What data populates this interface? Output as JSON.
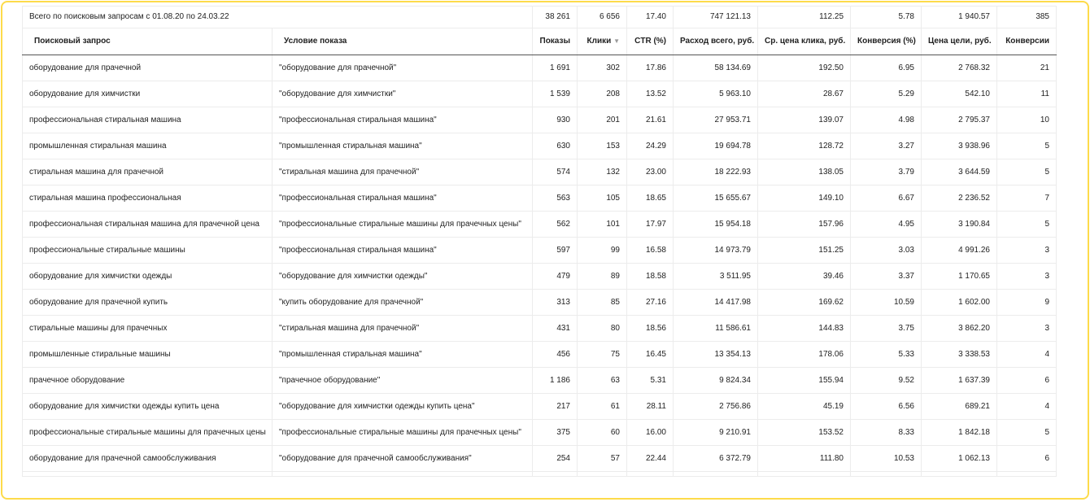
{
  "summary": {
    "label": "Всего по поисковым запросам с 01.08.20 по 24.03.22",
    "values": [
      "38 261",
      "6 656",
      "17.40",
      "747 121.13",
      "112.25",
      "5.78",
      "1 940.57",
      "385"
    ]
  },
  "columns": [
    "Поисковый запрос",
    "Условие показа",
    "Показы",
    "Клики",
    "CTR (%)",
    "Расход всего, руб.",
    "Ср. цена клика, руб.",
    "Конверсия (%)",
    "Цена цели, руб.",
    "Конверсии"
  ],
  "sort_indicator": "▼",
  "rows": [
    [
      "оборудование для прачечной",
      "\"оборудование для прачечной\"",
      "1 691",
      "302",
      "17.86",
      "58 134.69",
      "192.50",
      "6.95",
      "2 768.32",
      "21"
    ],
    [
      "оборудование для химчистки",
      "\"оборудование для химчистки\"",
      "1 539",
      "208",
      "13.52",
      "5 963.10",
      "28.67",
      "5.29",
      "542.10",
      "11"
    ],
    [
      "профессиональная стиральная машина",
      "\"профессиональная стиральная машина\"",
      "930",
      "201",
      "21.61",
      "27 953.71",
      "139.07",
      "4.98",
      "2 795.37",
      "10"
    ],
    [
      "промышленная стиральная машина",
      "\"промышленная стиральная машина\"",
      "630",
      "153",
      "24.29",
      "19 694.78",
      "128.72",
      "3.27",
      "3 938.96",
      "5"
    ],
    [
      "стиральная машина для прачечной",
      "\"стиральная машина для прачечной\"",
      "574",
      "132",
      "23.00",
      "18 222.93",
      "138.05",
      "3.79",
      "3 644.59",
      "5"
    ],
    [
      "стиральная машина профессиональная",
      "\"профессиональная стиральная машина\"",
      "563",
      "105",
      "18.65",
      "15 655.67",
      "149.10",
      "6.67",
      "2 236.52",
      "7"
    ],
    [
      "профессиональная стиральная машина для прачечной цена",
      "\"профессиональные стиральные машины для прачечных цены\"",
      "562",
      "101",
      "17.97",
      "15 954.18",
      "157.96",
      "4.95",
      "3 190.84",
      "5"
    ],
    [
      "профессиональные стиральные машины",
      "\"профессиональная стиральная машина\"",
      "597",
      "99",
      "16.58",
      "14 973.79",
      "151.25",
      "3.03",
      "4 991.26",
      "3"
    ],
    [
      "оборудование для химчистки одежды",
      "\"оборудование для химчистки одежды\"",
      "479",
      "89",
      "18.58",
      "3 511.95",
      "39.46",
      "3.37",
      "1 170.65",
      "3"
    ],
    [
      "оборудование для прачечной купить",
      "\"купить оборудование для прачечной\"",
      "313",
      "85",
      "27.16",
      "14 417.98",
      "169.62",
      "10.59",
      "1 602.00",
      "9"
    ],
    [
      "стиральные машины для прачечных",
      "\"стиральная машина для прачечной\"",
      "431",
      "80",
      "18.56",
      "11 586.61",
      "144.83",
      "3.75",
      "3 862.20",
      "3"
    ],
    [
      "промышленные стиральные машины",
      "\"промышленная стиральная машина\"",
      "456",
      "75",
      "16.45",
      "13 354.13",
      "178.06",
      "5.33",
      "3 338.53",
      "4"
    ],
    [
      "прачечное оборудование",
      "\"прачечное оборудование\"",
      "1 186",
      "63",
      "5.31",
      "9 824.34",
      "155.94",
      "9.52",
      "1 637.39",
      "6"
    ],
    [
      "оборудование для химчистки одежды купить цена",
      "\"оборудование для химчистки одежды купить цена\"",
      "217",
      "61",
      "28.11",
      "2 756.86",
      "45.19",
      "6.56",
      "689.21",
      "4"
    ],
    [
      "профессиональные стиральные машины для прачечных цены",
      "\"профессиональные стиральные машины для прачечных цены\"",
      "375",
      "60",
      "16.00",
      "9 210.91",
      "153.52",
      "8.33",
      "1 842.18",
      "5"
    ],
    [
      "оборудование для прачечной самообслуживания",
      "\"оборудование для прачечной самообслуживания\"",
      "254",
      "57",
      "22.44",
      "6 372.79",
      "111.80",
      "10.53",
      "1 062.13",
      "6"
    ]
  ],
  "colors": {
    "frame": "#fddb4a",
    "border": "#ececec"
  }
}
